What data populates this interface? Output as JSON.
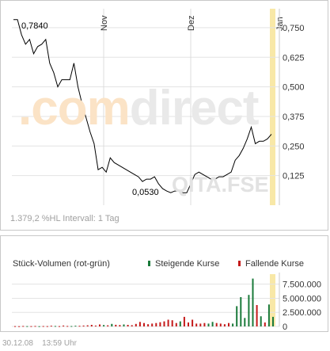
{
  "price_chart": {
    "watermark_brand_left": ".com",
    "watermark_brand_right": "direct",
    "watermark_code": "QITA.FSE",
    "footer_text": "1.379,2 %HL  Intervall: 1 Tag",
    "peak_label": "0,7840",
    "low_label": "0,0530"
  },
  "volume_chart": {
    "title": "Stück-Volumen (rot-grün)",
    "legend_rising": "Steigende Kurse",
    "legend_falling": "Fallende Kurse"
  },
  "footer": {
    "date": "30.12.08",
    "time": "13:59 Uhr"
  },
  "colors": {
    "line": "#000000",
    "grid": "#e3e3e3",
    "highlight": "#f5e08a",
    "rising": "#1a7a3a",
    "falling": "#c41a1a",
    "watermark_orange": "#fbe8cf",
    "watermark_gray": "#ececec"
  },
  "chart_data": [
    {
      "type": "line",
      "title": "",
      "x_ticks": [
        "Nov",
        "Dez",
        "Jan"
      ],
      "y_ticks": [
        "0,750",
        "0,625",
        "0,500",
        "0,375",
        "0,250",
        "0,125"
      ],
      "ylim": [
        0.0,
        0.83
      ],
      "grid": true,
      "annotations": [
        {
          "label": "0,7840",
          "value": 0.784
        },
        {
          "label": "0,0530",
          "value": 0.053
        }
      ],
      "series": [
        {
          "values": [
            0.784,
            0.784,
            0.72,
            0.68,
            0.7,
            0.64,
            0.67,
            0.68,
            0.7,
            0.6,
            0.56,
            0.5,
            0.53,
            0.53,
            0.53,
            0.6,
            0.5,
            0.43,
            0.37,
            0.31,
            0.26,
            0.15,
            0.16,
            0.14,
            0.2,
            0.18,
            0.17,
            0.16,
            0.15,
            0.14,
            0.13,
            0.12,
            0.1,
            0.11,
            0.11,
            0.12,
            0.09,
            0.07,
            0.06,
            0.053,
            0.06,
            0.06,
            0.053,
            0.053,
            0.09,
            0.13,
            0.14,
            0.13,
            0.12,
            0.11,
            0.11,
            0.12,
            0.12,
            0.13,
            0.14,
            0.19,
            0.21,
            0.24,
            0.28,
            0.33,
            0.26,
            0.27,
            0.27,
            0.28,
            0.3
          ]
        }
      ]
    },
    {
      "type": "bar",
      "title": "Stück-Volumen (rot-grün)",
      "y_ticks": [
        "7.500.000",
        "5.000.000",
        "2.500.000",
        "0"
      ],
      "ylim": [
        0,
        9000000
      ],
      "legend": [
        "Steigende Kurse",
        "Fallende Kurse"
      ],
      "legend_position": "top-right",
      "bars": [
        {
          "day": 0,
          "value": 60000,
          "trend": "falling"
        },
        {
          "day": 1,
          "value": 40000,
          "trend": "falling"
        },
        {
          "day": 2,
          "value": 80000,
          "trend": "falling"
        },
        {
          "day": 3,
          "value": 50000,
          "trend": "rising"
        },
        {
          "day": 4,
          "value": 60000,
          "trend": "falling"
        },
        {
          "day": 5,
          "value": 90000,
          "trend": "falling"
        },
        {
          "day": 6,
          "value": 40000,
          "trend": "rising"
        },
        {
          "day": 7,
          "value": 70000,
          "trend": "falling"
        },
        {
          "day": 8,
          "value": 60000,
          "trend": "falling"
        },
        {
          "day": 9,
          "value": 120000,
          "trend": "falling"
        },
        {
          "day": 10,
          "value": 80000,
          "trend": "rising"
        },
        {
          "day": 11,
          "value": 60000,
          "trend": "falling"
        },
        {
          "day": 12,
          "value": 150000,
          "trend": "falling"
        },
        {
          "day": 13,
          "value": 90000,
          "trend": "falling"
        },
        {
          "day": 14,
          "value": 70000,
          "trend": "rising"
        },
        {
          "day": 15,
          "value": 130000,
          "trend": "rising"
        },
        {
          "day": 16,
          "value": 110000,
          "trend": "falling"
        },
        {
          "day": 17,
          "value": 150000,
          "trend": "falling"
        },
        {
          "day": 18,
          "value": 200000,
          "trend": "falling"
        },
        {
          "day": 19,
          "value": 280000,
          "trend": "falling"
        },
        {
          "day": 20,
          "value": 160000,
          "trend": "falling"
        },
        {
          "day": 21,
          "value": 350000,
          "trend": "falling"
        },
        {
          "day": 22,
          "value": 260000,
          "trend": "rising"
        },
        {
          "day": 23,
          "value": 200000,
          "trend": "falling"
        },
        {
          "day": 24,
          "value": 450000,
          "trend": "rising"
        },
        {
          "day": 25,
          "value": 300000,
          "trend": "falling"
        },
        {
          "day": 26,
          "value": 250000,
          "trend": "falling"
        },
        {
          "day": 27,
          "value": 350000,
          "trend": "rising"
        },
        {
          "day": 28,
          "value": 280000,
          "trend": "falling"
        },
        {
          "day": 29,
          "value": 220000,
          "trend": "falling"
        },
        {
          "day": 30,
          "value": 450000,
          "trend": "falling"
        },
        {
          "day": 31,
          "value": 800000,
          "trend": "falling"
        },
        {
          "day": 32,
          "value": 600000,
          "trend": "falling"
        },
        {
          "day": 33,
          "value": 400000,
          "trend": "falling"
        },
        {
          "day": 34,
          "value": 500000,
          "trend": "falling"
        },
        {
          "day": 35,
          "value": 600000,
          "trend": "falling"
        },
        {
          "day": 36,
          "value": 750000,
          "trend": "falling"
        },
        {
          "day": 37,
          "value": 900000,
          "trend": "falling"
        },
        {
          "day": 38,
          "value": 1200000,
          "trend": "falling"
        },
        {
          "day": 39,
          "value": 1100000,
          "trend": "falling"
        },
        {
          "day": 40,
          "value": 600000,
          "trend": "falling"
        },
        {
          "day": 41,
          "value": 900000,
          "trend": "rising"
        },
        {
          "day": 42,
          "value": 1700000,
          "trend": "falling"
        },
        {
          "day": 43,
          "value": 700000,
          "trend": "falling"
        },
        {
          "day": 44,
          "value": 1200000,
          "trend": "falling"
        },
        {
          "day": 45,
          "value": 500000,
          "trend": "falling"
        },
        {
          "day": 46,
          "value": 500000,
          "trend": "falling"
        },
        {
          "day": 47,
          "value": 600000,
          "trend": "falling"
        },
        {
          "day": 48,
          "value": 500000,
          "trend": "rising"
        },
        {
          "day": 49,
          "value": 800000,
          "trend": "rising"
        },
        {
          "day": 50,
          "value": 600000,
          "trend": "falling"
        },
        {
          "day": 51,
          "value": 500000,
          "trend": "falling"
        },
        {
          "day": 52,
          "value": 400000,
          "trend": "falling"
        },
        {
          "day": 53,
          "value": 600000,
          "trend": "falling"
        },
        {
          "day": 54,
          "value": 500000,
          "trend": "rising"
        },
        {
          "day": 55,
          "value": 3600000,
          "trend": "rising"
        },
        {
          "day": 56,
          "value": 5200000,
          "trend": "rising"
        },
        {
          "day": 57,
          "value": 1500000,
          "trend": "rising"
        },
        {
          "day": 58,
          "value": 5600000,
          "trend": "rising"
        },
        {
          "day": 59,
          "value": 8500000,
          "trend": "rising"
        },
        {
          "day": 60,
          "value": 3800000,
          "trend": "falling"
        },
        {
          "day": 61,
          "value": 1800000,
          "trend": "rising"
        },
        {
          "day": 62,
          "value": 700000,
          "trend": "falling"
        },
        {
          "day": 63,
          "value": 3900000,
          "trend": "rising"
        },
        {
          "day": 64,
          "value": 1700000,
          "trend": "rising"
        }
      ]
    }
  ]
}
